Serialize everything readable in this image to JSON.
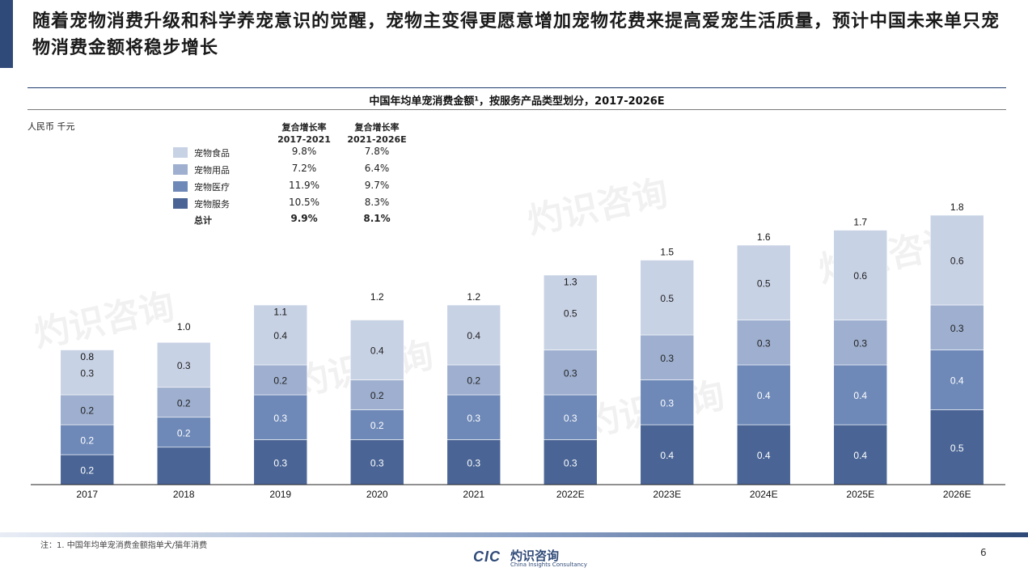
{
  "header": {
    "title": "随着宠物消费升级和科学养宠意识的觉醒，宠物主变得更愿意增加宠物花费来提高爱宠生活质量，预计中国未来单只宠物消费金额将稳步增长"
  },
  "chart_data": {
    "type": "bar",
    "stacked": true,
    "title": "中国年均单宠消费金额¹，按服务产品类型划分，2017-2026E",
    "unit_label": "人民币 千元",
    "categories": [
      "2017",
      "2018",
      "2019",
      "2020",
      "2021",
      "2022E",
      "2023E",
      "2024E",
      "2025E",
      "2026E"
    ],
    "series": [
      {
        "name": "宠物服务",
        "color": "#4a6595",
        "values": [
          0.2,
          0.25,
          0.3,
          0.3,
          0.3,
          0.3,
          0.4,
          0.4,
          0.4,
          0.5
        ],
        "labels": [
          "0.2",
          "",
          "0.3",
          "0.3",
          "0.3",
          "0.3",
          "0.4",
          "0.4",
          "0.4",
          "0.5"
        ]
      },
      {
        "name": "宠物医疗",
        "color": "#6e89b8",
        "values": [
          0.2,
          0.2,
          0.3,
          0.2,
          0.3,
          0.3,
          0.3,
          0.4,
          0.4,
          0.4
        ],
        "labels": [
          "0.2",
          "0.2",
          "0.3",
          "0.2",
          "0.3",
          "0.3",
          "0.3",
          "0.4",
          "0.4",
          "0.4"
        ]
      },
      {
        "name": "宠物用品",
        "color": "#9eafcf",
        "values": [
          0.2,
          0.2,
          0.2,
          0.2,
          0.2,
          0.3,
          0.3,
          0.3,
          0.3,
          0.3
        ],
        "labels": [
          "0.2",
          "0.2",
          "0.2",
          "0.2",
          "0.2",
          "0.3",
          "0.3",
          "0.3",
          "0.3",
          "0.3"
        ]
      },
      {
        "name": "宠物食品",
        "color": "#c8d2e5",
        "values": [
          0.3,
          0.3,
          0.4,
          0.4,
          0.4,
          0.5,
          0.5,
          0.5,
          0.6,
          0.6
        ],
        "labels": [
          "0.3",
          "0.3",
          "0.4",
          "0.4",
          "0.4",
          "0.5",
          "0.5",
          "0.5",
          "0.6",
          "0.6"
        ]
      }
    ],
    "totals": [
      0.8,
      1.0,
      1.1,
      1.2,
      1.2,
      1.3,
      1.5,
      1.6,
      1.7,
      1.8
    ],
    "total_labels": [
      "0.8",
      "1.0",
      "1.1",
      "1.2",
      "1.2",
      "1.3",
      "1.5",
      "1.6",
      "1.7",
      "1.8"
    ],
    "ylim": [
      0,
      2.0
    ],
    "grid": false
  },
  "legend_table": {
    "col1_line1": "复合增长率",
    "col1_line2": "2017-2021",
    "col2_line1": "复合增长率",
    "col2_line2": "2021-2026E",
    "rows": [
      {
        "label": "宠物食品",
        "cagr1": "9.8%",
        "cagr2": "7.8%",
        "color": "#c8d2e5"
      },
      {
        "label": "宠物用品",
        "cagr1": "7.2%",
        "cagr2": "6.4%",
        "color": "#9eafcf"
      },
      {
        "label": "宠物医疗",
        "cagr1": "11.9%",
        "cagr2": "9.7%",
        "color": "#6e89b8"
      },
      {
        "label": "宠物服务",
        "cagr1": "10.5%",
        "cagr2": "8.3%",
        "color": "#4a6595"
      }
    ],
    "total_label": "总计",
    "total_cagr1": "9.9%",
    "total_cagr2": "8.1%"
  },
  "footer": {
    "note": "注：1. 中国年均单宠消费金额指单犬/猫年消费",
    "logo_mark": "CIC",
    "logo_cn": "灼识咨询",
    "logo_en": "China Insights Consultancy",
    "page_number": "6"
  },
  "watermark": {
    "cn": "灼识咨询",
    "en": "China Insights Consultancy"
  }
}
